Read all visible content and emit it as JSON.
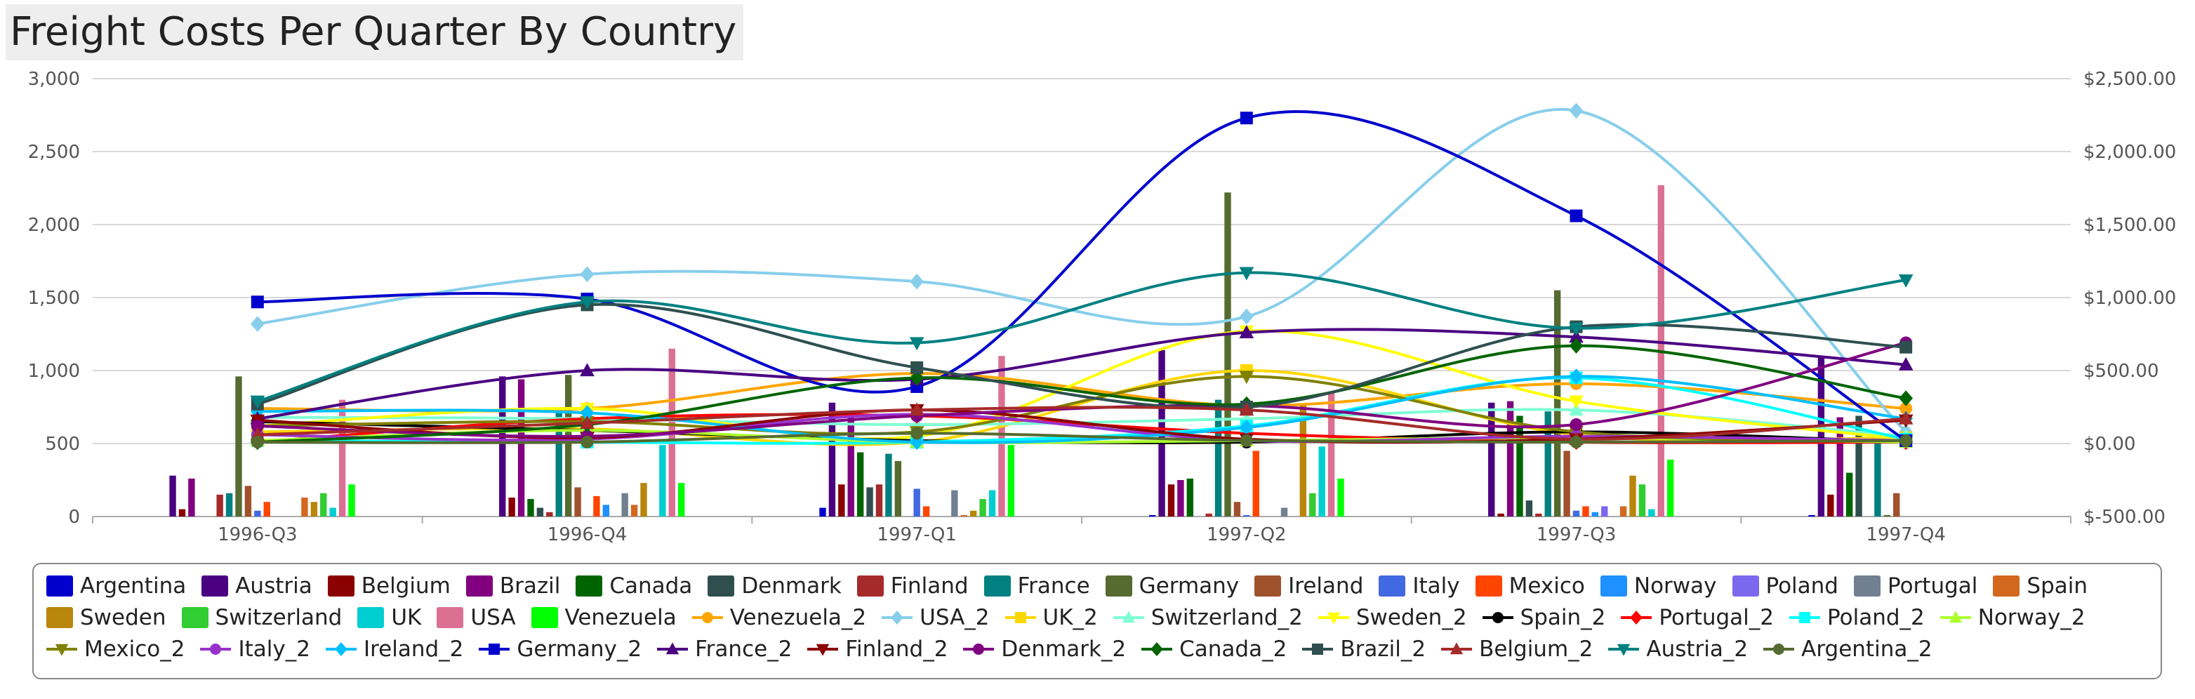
{
  "chart_data": {
    "type": "bar",
    "title": "Freight Costs Per Quarter By Country",
    "categories": [
      "1996-Q3",
      "1996-Q4",
      "1997-Q1",
      "1997-Q2",
      "1997-Q3",
      "1997-Q4"
    ],
    "y_left": {
      "min": 0,
      "max": 3000,
      "ticks": [
        "0",
        "500",
        "1,000",
        "1,500",
        "2,000",
        "2,500",
        "3,000"
      ]
    },
    "y_right": {
      "min": -500,
      "max": 2500,
      "ticks": [
        "$-500.00",
        "$0.00",
        "$500.00",
        "$1,000.00",
        "$1,500.00",
        "$2,000.00",
        "$2,500.00"
      ]
    },
    "grid": true,
    "legend_position": "bottom",
    "bar_series": [
      {
        "name": "Argentina",
        "color": "#0000cd",
        "values": [
          0,
          0,
          60,
          10,
          0,
          10
        ]
      },
      {
        "name": "Austria",
        "color": "#4b0082",
        "values": [
          280,
          960,
          780,
          1140,
          780,
          1100
        ]
      },
      {
        "name": "Belgium",
        "color": "#8b0000",
        "values": [
          50,
          130,
          220,
          220,
          20,
          150
        ]
      },
      {
        "name": "Brazil",
        "color": "#800080",
        "values": [
          260,
          940,
          680,
          250,
          790,
          680
        ]
      },
      {
        "name": "Canada",
        "color": "#006400",
        "values": [
          0,
          120,
          440,
          260,
          690,
          300
        ]
      },
      {
        "name": "Denmark",
        "color": "#2f4f4f",
        "values": [
          0,
          60,
          200,
          0,
          110,
          690
        ]
      },
      {
        "name": "Finland",
        "color": "#a52a2a",
        "values": [
          150,
          30,
          220,
          20,
          20,
          0
        ]
      },
      {
        "name": "France",
        "color": "#008080",
        "values": [
          160,
          730,
          430,
          800,
          720,
          530
        ]
      },
      {
        "name": "Germany",
        "color": "#556b2f",
        "values": [
          960,
          970,
          380,
          2220,
          1550,
          10
        ]
      },
      {
        "name": "Ireland",
        "color": "#a0522d",
        "values": [
          210,
          200,
          0,
          100,
          450,
          160
        ]
      },
      {
        "name": "Italy",
        "color": "#4169e1",
        "values": [
          40,
          0,
          190,
          10,
          40,
          0
        ]
      },
      {
        "name": "Mexico",
        "color": "#ff4500",
        "values": [
          100,
          140,
          70,
          450,
          70,
          0
        ]
      },
      {
        "name": "Norway",
        "color": "#1e90ff",
        "values": [
          0,
          80,
          0,
          0,
          30,
          0
        ]
      },
      {
        "name": "Poland",
        "color": "#7b68ee",
        "values": [
          0,
          0,
          0,
          0,
          70,
          0
        ]
      },
      {
        "name": "Portugal",
        "color": "#708090",
        "values": [
          0,
          160,
          180,
          60,
          0,
          0
        ]
      },
      {
        "name": "Spain",
        "color": "#d2691e",
        "values": [
          130,
          80,
          10,
          0,
          70,
          0
        ]
      },
      {
        "name": "Sweden",
        "color": "#b8860b",
        "values": [
          100,
          230,
          40,
          760,
          280,
          0
        ]
      },
      {
        "name": "Switzerland",
        "color": "#32cd32",
        "values": [
          160,
          0,
          120,
          160,
          220,
          0
        ]
      },
      {
        "name": "UK",
        "color": "#00ced1",
        "values": [
          60,
          490,
          180,
          480,
          50,
          0
        ]
      },
      {
        "name": "USA",
        "color": "#db7093",
        "values": [
          800,
          1150,
          1100,
          850,
          2270,
          0
        ]
      },
      {
        "name": "Venezuela",
        "color": "#00ff00",
        "values": [
          220,
          230,
          490,
          260,
          390,
          0
        ]
      }
    ],
    "line_series": [
      {
        "name": "Venezuela_2",
        "color": "#ffa500",
        "marker": "circle",
        "values": [
          240,
          240,
          480,
          260,
          410,
          240
        ]
      },
      {
        "name": "USA_2",
        "color": "#87ceeb",
        "marker": "diamond",
        "values": [
          820,
          1160,
          1110,
          870,
          2280,
          80
        ]
      },
      {
        "name": "UK_2",
        "color": "#ffd700",
        "marker": "square",
        "values": [
          80,
          100,
          10,
          500,
          60,
          40
        ]
      },
      {
        "name": "Switzerland_2",
        "color": "#7fffd4",
        "marker": "triangle",
        "values": [
          180,
          170,
          130,
          170,
          230,
          50
        ]
      },
      {
        "name": "Sweden_2",
        "color": "#ffff00",
        "marker": "triangle-down",
        "values": [
          120,
          240,
          50,
          770,
          290,
          30
        ]
      },
      {
        "name": "Spain_2",
        "color": "#000000",
        "marker": "circle",
        "values": [
          150,
          90,
          20,
          10,
          80,
          10
        ]
      },
      {
        "name": "Portugal_2",
        "color": "#ff0000",
        "marker": "diamond",
        "values": [
          10,
          170,
          190,
          70,
          10,
          10
        ]
      },
      {
        "name": "Poland_2",
        "color": "#00ffff",
        "marker": "square",
        "values": [
          20,
          10,
          10,
          120,
          450,
          30
        ]
      },
      {
        "name": "Norway_2",
        "color": "#adff2f",
        "marker": "triangle",
        "values": [
          20,
          90,
          10,
          20,
          40,
          10
        ]
      },
      {
        "name": "Mexico_2",
        "color": "#808000",
        "marker": "triangle-down",
        "values": [
          120,
          150,
          80,
          460,
          80,
          20
        ]
      },
      {
        "name": "Italy_2",
        "color": "#9932cc",
        "marker": "circle",
        "values": [
          60,
          30,
          200,
          20,
          50,
          20
        ]
      },
      {
        "name": "Ireland_2",
        "color": "#00bfff",
        "marker": "diamond",
        "values": [
          220,
          210,
          10,
          110,
          460,
          170
        ]
      },
      {
        "name": "Germany_2",
        "color": "#0000cd",
        "marker": "square",
        "values": [
          970,
          990,
          390,
          2230,
          1560,
          20
        ]
      },
      {
        "name": "France_2",
        "color": "#4b0082",
        "marker": "triangle",
        "values": [
          170,
          500,
          440,
          760,
          730,
          540
        ]
      },
      {
        "name": "Finland_2",
        "color": "#8b0000",
        "marker": "triangle-down",
        "values": [
          160,
          40,
          230,
          30,
          30,
          160
        ]
      },
      {
        "name": "Denmark_2",
        "color": "#800080",
        "marker": "circle",
        "values": [
          120,
          50,
          190,
          260,
          130,
          690
        ]
      },
      {
        "name": "Canada_2",
        "color": "#006400",
        "marker": "diamond",
        "values": [
          10,
          130,
          450,
          270,
          670,
          310
        ]
      },
      {
        "name": "Brazil_2",
        "color": "#2f4f4f",
        "marker": "square",
        "values": [
          270,
          950,
          520,
          250,
          800,
          660
        ]
      },
      {
        "name": "Belgium_2",
        "color": "#a52a2a",
        "marker": "triangle",
        "values": [
          60,
          140,
          230,
          230,
          30,
          170
        ]
      },
      {
        "name": "Austria_2",
        "color": "#008080",
        "marker": "triangle-down",
        "values": [
          290,
          970,
          690,
          1170,
          790,
          1120
        ]
      },
      {
        "name": "Argentina_2",
        "color": "#556b2f",
        "marker": "circle",
        "values": [
          10,
          10,
          70,
          20,
          10,
          20
        ]
      }
    ]
  }
}
